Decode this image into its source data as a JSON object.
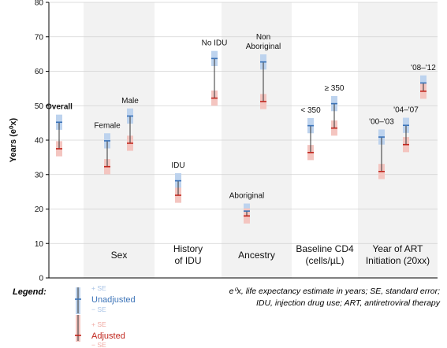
{
  "chart_data": {
    "type": "range-plot",
    "ylabel": "Years (e⁰x)",
    "ylim": [
      0,
      80
    ],
    "yticks": [
      0,
      10,
      20,
      30,
      40,
      50,
      60,
      70,
      80
    ],
    "grid": true,
    "groups": [
      {
        "label": [
          "Sex"
        ],
        "shaded": true,
        "members": [
          1,
          2
        ]
      },
      {
        "label": [
          "History",
          "of IDU"
        ],
        "shaded": false,
        "members": [
          3,
          4
        ]
      },
      {
        "label": [
          "Ancestry"
        ],
        "shaded": true,
        "members": [
          5,
          6
        ]
      },
      {
        "label": [
          "Baseline CD4",
          "(cells/µL)"
        ],
        "shaded": false,
        "members": [
          7,
          8
        ]
      },
      {
        "label": [
          "Year of ART",
          "Initiation (20xx)"
        ],
        "shaded": true,
        "members": [
          9,
          10,
          11
        ]
      }
    ],
    "points": [
      {
        "label": [
          "Overall"
        ],
        "bold": true,
        "unadjusted": 45.2,
        "adjusted": 37.5
      },
      {
        "label": [
          "Female"
        ],
        "bold": false,
        "unadjusted": 39.8,
        "adjusted": 32.3
      },
      {
        "label": [
          "Male"
        ],
        "bold": false,
        "unadjusted": 47.0,
        "adjusted": 39.1
      },
      {
        "label": [
          "IDU"
        ],
        "bold": false,
        "unadjusted": 28.2,
        "adjusted": 24.0
      },
      {
        "label": [
          "No IDU"
        ],
        "bold": false,
        "unadjusted": 63.7,
        "adjusted": 52.2
      },
      {
        "label": [
          "Aboriginal"
        ],
        "bold": false,
        "unadjusted": 19.4,
        "adjusted": 18.0
      },
      {
        "label": [
          "Non",
          "Aboriginal"
        ],
        "bold": false,
        "unadjusted": 62.7,
        "adjusted": 51.2
      },
      {
        "label": [
          "< 350"
        ],
        "bold": false,
        "unadjusted": 44.2,
        "adjusted": 36.4
      },
      {
        "label": [
          "≥ 350"
        ],
        "bold": false,
        "unadjusted": 50.6,
        "adjusted": 43.5
      },
      {
        "label": [
          "'00–'03"
        ],
        "bold": false,
        "unadjusted": 40.9,
        "adjusted": 30.9
      },
      {
        "label": [
          "'04–'07"
        ],
        "bold": false,
        "unadjusted": 44.3,
        "adjusted": 38.7
      },
      {
        "label": [
          "'08–'12"
        ],
        "bold": false,
        "unadjusted": 56.6,
        "adjusted": 54.2
      }
    ],
    "legend": {
      "title": "Legend:",
      "unadjusted": "Unadjusted",
      "adjusted": "Adjusted",
      "plus_se": "+ SE",
      "minus_se": "− SE"
    },
    "colors": {
      "unadjusted": "#3d74b8",
      "unadjusted_band": "#bdd3ee",
      "adjusted": "#c0261d",
      "adjusted_band": "#f4c5c0",
      "group_shade": "#f2f2f2",
      "stem": "#333333"
    }
  },
  "footnote": [
    "e⁰x, life expectancy estimate in years; SE, standard error;",
    "IDU, injection drug use; ART, antiretroviral therapy"
  ]
}
